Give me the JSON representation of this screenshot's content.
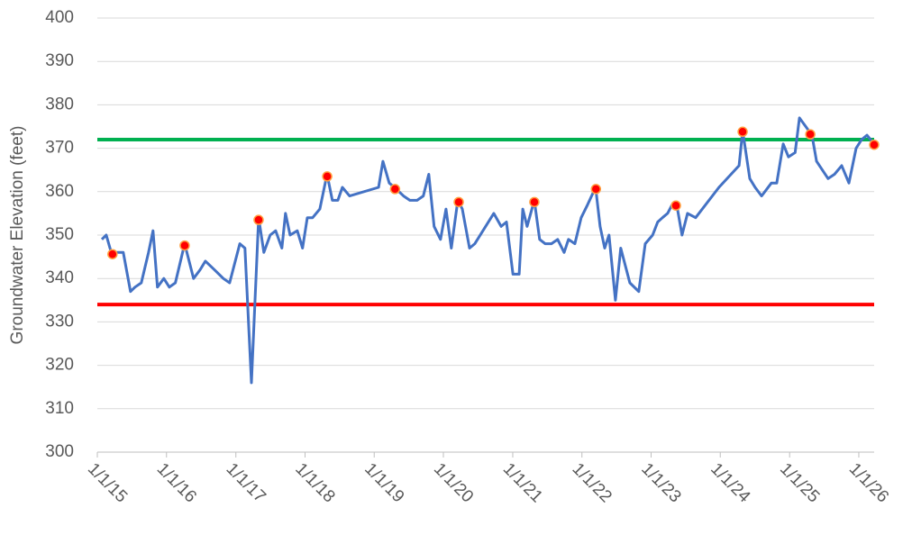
{
  "chart_data": {
    "type": "line",
    "ylabel": "Groundwater Elevation (feet)",
    "ylim": [
      300,
      400
    ],
    "yticks": [
      300,
      310,
      320,
      330,
      340,
      350,
      360,
      370,
      380,
      390,
      400
    ],
    "grid": true,
    "xlim": [
      "1/1/15",
      "3/23/26"
    ],
    "xticks": [
      "1/1/15",
      "1/1/16",
      "1/1/17",
      "1/1/18",
      "1/1/19",
      "1/1/20",
      "1/1/21",
      "1/1/22",
      "1/1/23",
      "1/1/24",
      "1/1/25",
      "1/1/26"
    ],
    "color": "#4472c4",
    "x": [
      "1/25/15",
      "2/17/15",
      "3/22/15",
      "4/15/15",
      "5/18/15",
      "6/25/15",
      "7/19/15",
      "8/21/15",
      "9/28/15",
      "10/22/15",
      "11/14/15",
      "12/18/15",
      "1/16/16",
      "2/17/16",
      "4/6/16",
      "5/23/16",
      "6/26/16",
      "7/24/16",
      "9/10/16",
      "10/27/16",
      "11/29/16",
      "1/22/17",
      "2/18/17",
      "3/24/17",
      "5/1/17",
      "5/29/17",
      "7/1/17",
      "7/30/17",
      "9/1/17",
      "9/20/17",
      "10/14/17",
      "11/21/17",
      "12/19/17",
      "1/13/18",
      "2/10/18",
      "3/20/18",
      "4/27/18",
      "5/25/18",
      "6/23/18",
      "7/17/18",
      "8/24/18",
      "1/24/19",
      "2/16/19",
      "3/21/19",
      "4/18/19",
      "6/5/19",
      "7/8/19",
      "8/15/19",
      "9/17/19",
      "10/16/19",
      "11/13/19",
      "12/17/19",
      "1/15/20",
      "2/12/20",
      "3/17/20",
      "4/10/20",
      "5/18/20",
      "6/15/20",
      "9/23/20",
      "11/1/20",
      "11/29/20",
      "1/2/21",
      "2/4/21",
      "2/23/21",
      "3/18/21",
      "4/25/21",
      "5/23/21",
      "6/21/21",
      "7/24/21",
      "8/26/21",
      "9/29/21",
      "10/22/21",
      "11/25/21",
      "12/28/21",
      "1/31/22",
      "3/14/22",
      "4/7/22",
      "5/1/22",
      "5/24/22",
      "6/27/22",
      "7/25/22",
      "9/11/22",
      "10/28/22",
      "12/1/22",
      "1/9/23",
      "2/5/23",
      "3/2/23",
      "3/29/23",
      "4/22/23",
      "5/16/23",
      "6/13/23",
      "7/12/23",
      "8/24/23",
      "12/25/23",
      "4/9/24",
      "4/28/24",
      "6/5/24",
      "7/3/24",
      "8/6/24",
      "9/27/24",
      "10/25/24",
      "11/28/24",
      "12/26/24",
      "1/30/25",
      "2/22/25",
      "3/27/25",
      "4/29/25",
      "5/23/25",
      "7/23/25",
      "8/26/25",
      "10/3/25",
      "11/10/25",
      "12/18/25",
      "1/16/26",
      "2/13/26",
      "3/23/26"
    ],
    "values": [
      349,
      350,
      345,
      346,
      346,
      337,
      338,
      339,
      346,
      351,
      338,
      340,
      338,
      339,
      348,
      340,
      342,
      344,
      342,
      340,
      339,
      348,
      347,
      316,
      354,
      346,
      350,
      351,
      347,
      355,
      350,
      351,
      347,
      354,
      354,
      356,
      364,
      358,
      358,
      361,
      359,
      361,
      367,
      362,
      361,
      359,
      358,
      358,
      359,
      364,
      352,
      349,
      356,
      347,
      358,
      356,
      347,
      348,
      355,
      352,
      353,
      341,
      341,
      356,
      352,
      358,
      349,
      348,
      348,
      349,
      346,
      349,
      348,
      354,
      357,
      361,
      352,
      347,
      350,
      335,
      347,
      339,
      337,
      348,
      350,
      353,
      354,
      355,
      357,
      357,
      350,
      355,
      354,
      361,
      366,
      374,
      363,
      361,
      359,
      362,
      362,
      371,
      368,
      369,
      377,
      375,
      373,
      367,
      363,
      364,
      366,
      362,
      370,
      372,
      373,
      371
    ],
    "markers": {
      "color": "#ff0000",
      "x": [
        "3/22/15",
        "4/6/16",
        "5/1/17",
        "4/28/18",
        "4/21/19",
        "3/22/20",
        "4/25/21",
        "3/16/22",
        "5/12/23",
        "4/28/24",
        "4/20/25",
        "3/23/26"
      ],
      "values": [
        345.6,
        347.6,
        353.5,
        363.5,
        360.6,
        357.6,
        357.6,
        360.6,
        356.8,
        373.8,
        373.2,
        370.8
      ]
    },
    "hlines": [
      {
        "value": 372,
        "color": "#00b050"
      },
      {
        "value": 334,
        "color": "#ff0000"
      }
    ]
  }
}
